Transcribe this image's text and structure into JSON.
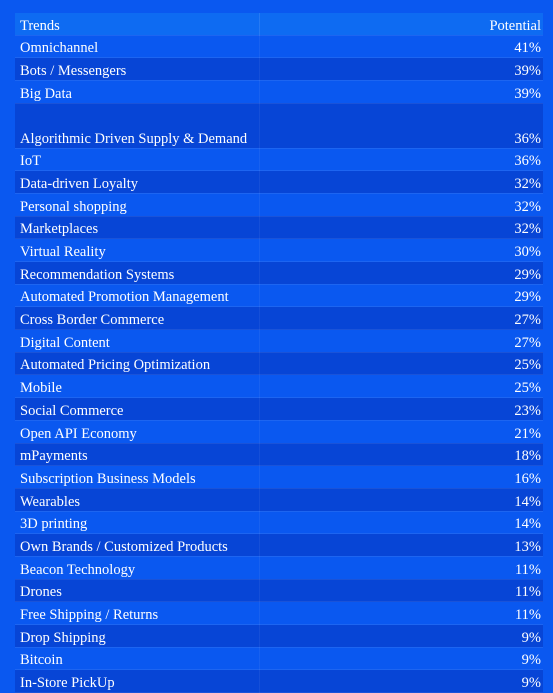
{
  "chart_data": {
    "type": "table",
    "columns": [
      "Trends",
      "Potential"
    ],
    "rows": [
      {
        "trend": "Omnichannel",
        "potential": "41%"
      },
      {
        "trend": "Bots / Messengers",
        "potential": "39%"
      },
      {
        "trend": "Big Data",
        "potential": "39%"
      },
      {
        "trend": "Algorithmic Driven Supply & Demand",
        "potential": "36%"
      },
      {
        "trend": "IoT",
        "potential": "36%"
      },
      {
        "trend": "Data-driven Loyalty",
        "potential": "32%"
      },
      {
        "trend": "Personal shopping",
        "potential": "32%"
      },
      {
        "trend": "Marketplaces",
        "potential": "32%"
      },
      {
        "trend": "Virtual Reality",
        "potential": "30%"
      },
      {
        "trend": "Recommendation Systems",
        "potential": "29%"
      },
      {
        "trend": "Automated Promotion Management",
        "potential": "29%"
      },
      {
        "trend": "Cross Border Commerce",
        "potential": "27%"
      },
      {
        "trend": "Digital Content",
        "potential": "27%"
      },
      {
        "trend": "Automated Pricing Optimization",
        "potential": "25%"
      },
      {
        "trend": "Mobile",
        "potential": "25%"
      },
      {
        "trend": "Social Commerce",
        "potential": "23%"
      },
      {
        "trend": "Open API Economy",
        "potential": "21%"
      },
      {
        "trend": "mPayments",
        "potential": "18%"
      },
      {
        "trend": "Subscription Business Models",
        "potential": "16%"
      },
      {
        "trend": "Wearables",
        "potential": "14%"
      },
      {
        "trend": "3D printing",
        "potential": "14%"
      },
      {
        "trend": "Own Brands / Customized Products",
        "potential": "13%"
      },
      {
        "trend": "Beacon Technology",
        "potential": "11%"
      },
      {
        "trend": "Drones",
        "potential": "11%"
      },
      {
        "trend": "Free Shipping / Returns",
        "potential": "11%"
      },
      {
        "trend": "Drop Shipping",
        "potential": "9%"
      },
      {
        "trend": "Bitcoin",
        "potential": "9%"
      },
      {
        "trend": "In-Store PickUp",
        "potential": "9%"
      }
    ]
  },
  "colors": {
    "background": "#0a58f0",
    "header": "#0e6bf2",
    "row_light": "#0a58f0",
    "row_dark": "#0745d6",
    "text": "#ffffff"
  }
}
